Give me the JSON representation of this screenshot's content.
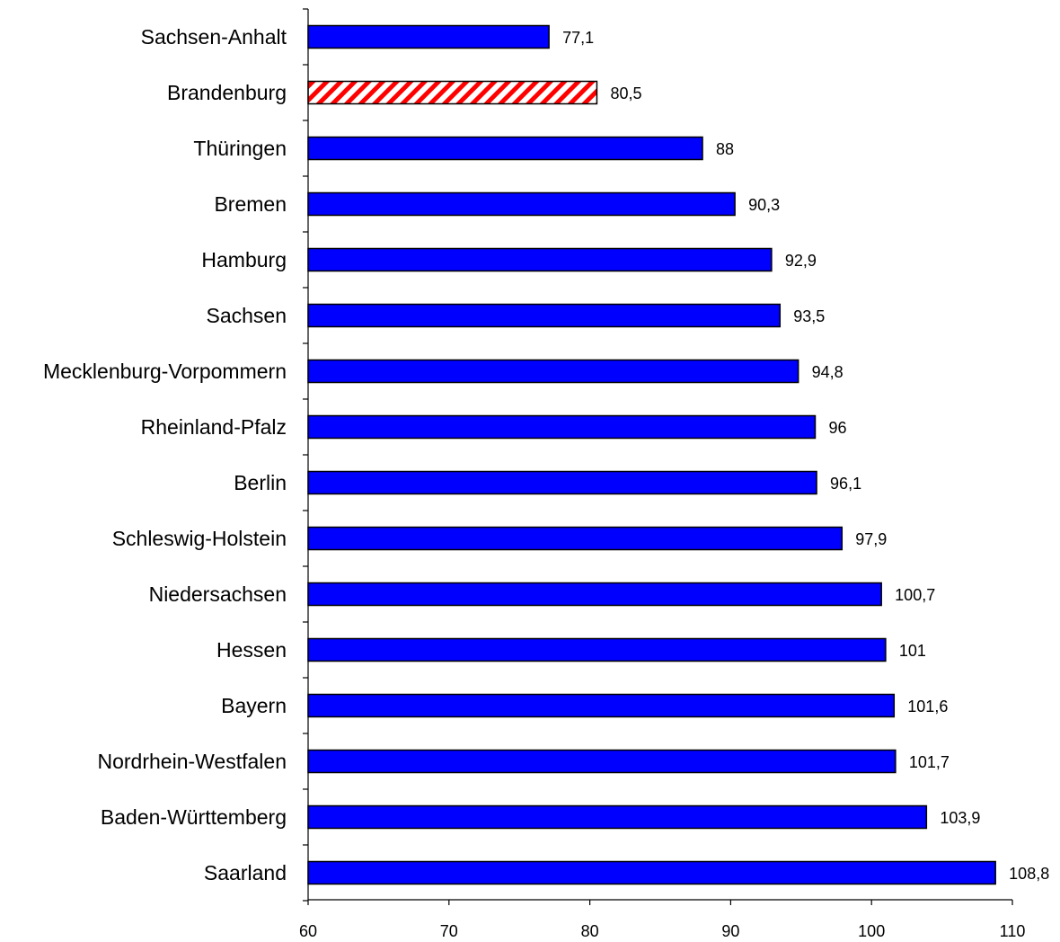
{
  "chart_data": {
    "type": "bar",
    "orientation": "horizontal",
    "title": "",
    "xlabel": "",
    "ylabel": "",
    "categories": [
      "Sachsen-Anhalt",
      "Brandenburg",
      "Thüringen",
      "Bremen",
      "Hamburg",
      "Sachsen",
      "Mecklenburg-Vorpommern",
      "Rheinland-Pfalz",
      "Berlin",
      "Schleswig-Holstein",
      "Niedersachsen",
      "Hessen",
      "Bayern",
      "Nordrhein-Westfalen",
      "Baden-Württemberg",
      "Saarland"
    ],
    "values": [
      77.1,
      80.5,
      88,
      90.3,
      92.9,
      93.5,
      94.8,
      96,
      96.1,
      97.9,
      100.7,
      101,
      101.6,
      101.7,
      103.9,
      108.8
    ],
    "value_labels": [
      "77,1",
      "80,5",
      "88",
      "90,3",
      "92,9",
      "93,5",
      "94,8",
      "96",
      "96,1",
      "97,9",
      "100,7",
      "101",
      "101,6",
      "101,7",
      "103,9",
      "108,8"
    ],
    "highlight_category": "Brandenburg",
    "xlim": [
      60,
      110
    ],
    "xticks": [
      60,
      70,
      80,
      90,
      100,
      110
    ],
    "xtick_labels": [
      "60",
      "70",
      "80",
      "90",
      "100",
      "110"
    ],
    "grid": false,
    "legend": "none",
    "colors": {
      "bar_fill": "#0000ff",
      "bar_border": "#000000",
      "highlight_stripe": "#ff0000",
      "highlight_background": "#ffffff"
    }
  }
}
